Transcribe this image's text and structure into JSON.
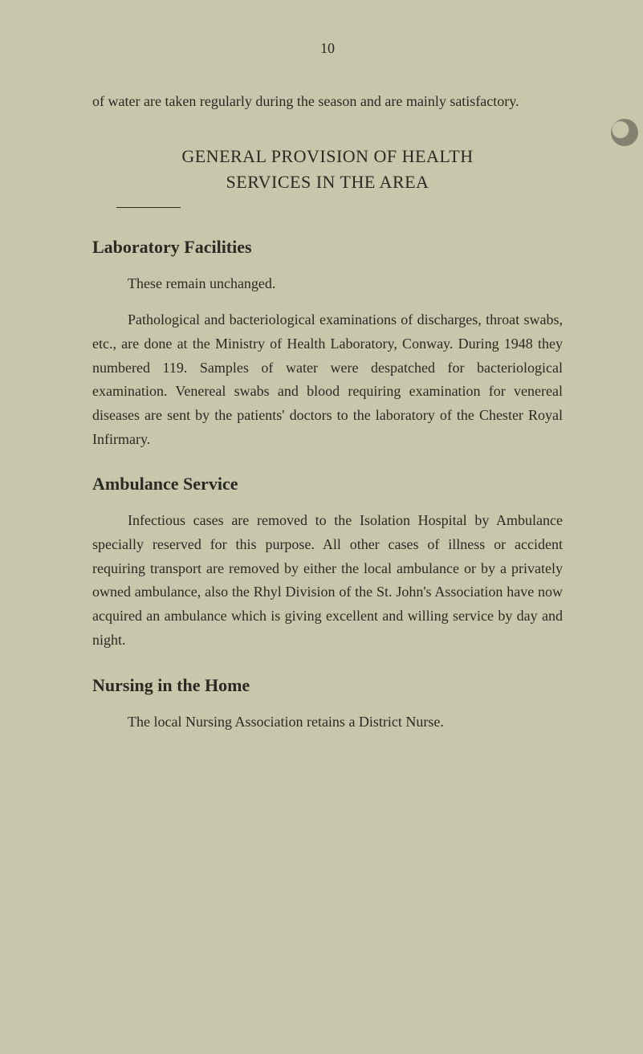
{
  "page_number": "10",
  "intro": "of water are taken regularly during the season and are mainly satisfactory.",
  "heading_main_l1": "GENERAL PROVISION OF HEALTH",
  "heading_main_l2": "SERVICES IN THE AREA",
  "sections": {
    "lab": {
      "title": "Laboratory Facilities",
      "p1": "These remain unchanged.",
      "p2": "Pathological and bacteriological examinations of discharges, throat swabs, etc., are done at the Ministry of Health Laboratory, Conway. During 1948 they numbered 119. Samples of water were despatched for bacteriological examination. Venereal swabs and blood requiring examination for venereal diseases are sent by the patients' doctors to the laboratory of the Chester Royal Infirmary."
    },
    "amb": {
      "title": "Ambulance Service",
      "p1": "Infectious cases are removed to the Isolation Hospital by Ambulance specially reserved for this purpose. All other cases of illness or accident requiring transport are removed by either the local ambulance or by a privately owned ambulance, also the Rhyl Division of the St. John's Association have now acquired an ambulance which is giving excellent and willing service by day and night."
    },
    "nurse": {
      "title": "Nursing in the Home",
      "p1": "The local Nursing Association retains a District Nurse."
    }
  },
  "colors": {
    "background": "#c9c7ab",
    "text": "#2a2a24"
  },
  "typography": {
    "body_fontsize_pt": 14,
    "heading_fontsize_pt": 17,
    "font_family": "serif"
  }
}
